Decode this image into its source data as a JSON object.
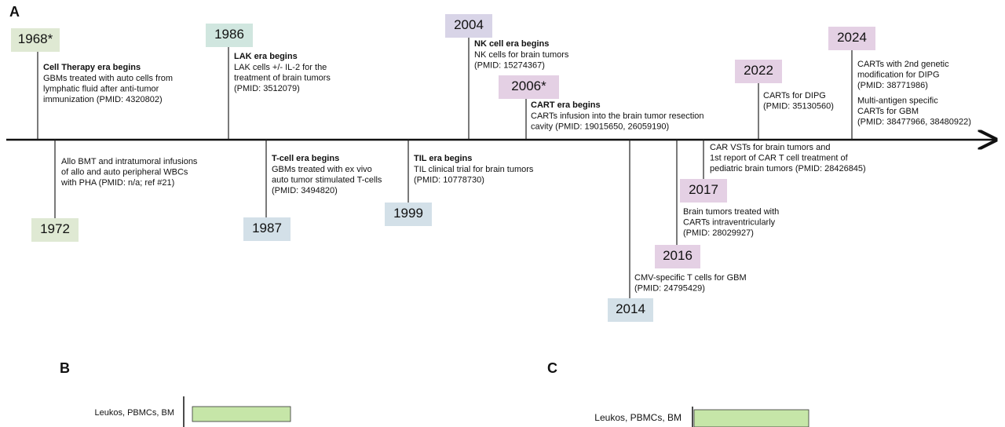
{
  "panels": {
    "a": "A",
    "b": "B",
    "c": "C"
  },
  "events": [
    {
      "year": "1968*",
      "groups": [
        {
          "title": "Cell Therapy era begins",
          "lines": [
            "GBMs treated with auto cells from",
            "lymphatic fluid after anti-tumor",
            "immunization (PMID: 4320802)"
          ]
        }
      ]
    },
    {
      "year": "1972",
      "groups": [
        {
          "lines": [
            "Allo BMT and intratumoral infusions",
            "of allo and auto peripheral WBCs",
            "with PHA (PMID: n/a; ref #21)"
          ]
        }
      ]
    },
    {
      "year": "1986",
      "groups": [
        {
          "title": "LAK era begins",
          "lines": [
            "LAK cells +/- IL-2 for the",
            "treatment of brain tumors",
            "(PMID: 3512079)"
          ]
        }
      ]
    },
    {
      "year": "1987",
      "groups": [
        {
          "title": "T-cell era begins",
          "lines": [
            "GBMs treated with ex vivo",
            "auto tumor stimulated T-cells",
            "(PMID: 3494820)"
          ]
        }
      ]
    },
    {
      "year": "1999",
      "groups": [
        {
          "title": "TIL era begins",
          "lines": [
            "TIL clinical trial for brain tumors",
            "(PMID: 10778730)"
          ]
        }
      ]
    },
    {
      "year": "2004",
      "groups": [
        {
          "title": "NK cell era begins",
          "lines": [
            "NK cells for brain tumors",
            "(PMID: 15274367)"
          ]
        }
      ]
    },
    {
      "year": "2006*",
      "groups": [
        {
          "title": "CART era begins",
          "lines": [
            "CARTs infusion into the brain tumor resection",
            "cavity (PMID: 19015650, 26059190)"
          ]
        }
      ]
    },
    {
      "year": "2014",
      "groups": [
        {
          "lines": [
            "CMV-specific T cells for GBM",
            "(PMID: 24795429)"
          ]
        }
      ]
    },
    {
      "year": "2016",
      "groups": [
        {
          "lines": [
            "Brain tumors treated with",
            "CARTs intraventricularly",
            "(PMID: 28029927)"
          ]
        }
      ]
    },
    {
      "year": "2017",
      "groups": [
        {
          "lines": [
            "CAR VSTs for brain tumors and",
            "1st report of CAR T cell treatment of",
            "pediatric brain tumors (PMID: 28426845)"
          ]
        }
      ]
    },
    {
      "year": "2022",
      "groups": [
        {
          "lines": [
            "CARTs for DIPG",
            "(PMID: 35130560)"
          ]
        }
      ]
    },
    {
      "year": "2024",
      "groups": [
        {
          "lines": [
            "CARTs with 2nd genetic",
            "modification for DIPG",
            "(PMID: 38771986)"
          ]
        },
        {
          "lines": [
            "Multi-antigen specific",
            "CARTs for GBM",
            "(PMID: 38477966, 38480922)"
          ]
        }
      ]
    }
  ],
  "panel_b": {
    "rows": [
      "Leukos, PBMCs, BM"
    ]
  },
  "panel_c": {
    "rows": [
      "Leukos, PBMCs, BM"
    ]
  }
}
